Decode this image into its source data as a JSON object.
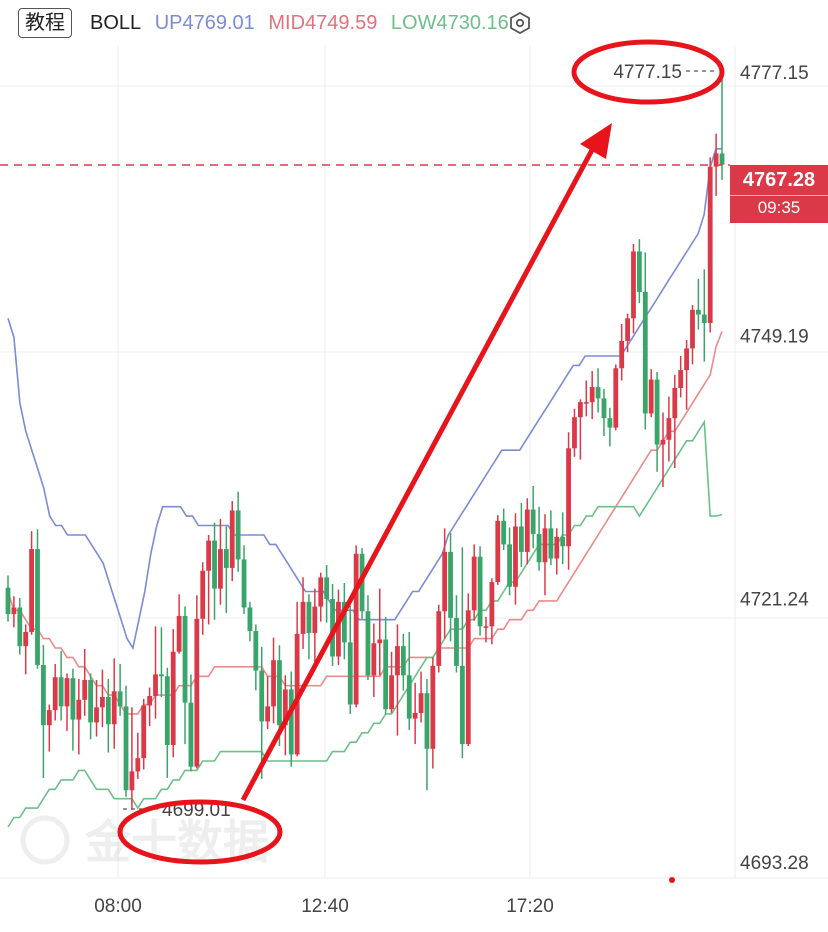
{
  "header": {
    "tag_label": "教程",
    "indicator_name": "BOLL",
    "up_label": "UP4769.01",
    "mid_label": "MID4749.59",
    "low_label": "LOW4730.16",
    "settings_icon": "hexagon-gear-icon"
  },
  "current_price": {
    "value": "4767.28",
    "countdown": "09:35"
  },
  "colors": {
    "up_candle": "#dc3948",
    "down_candle": "#3aa56b",
    "boll_up": "#7b8bd6",
    "boll_mid": "#ec8a8a",
    "boll_low": "#6dbf8a",
    "annotation": "#e8141c"
  },
  "chart_data": {
    "type": "candlestick",
    "title": "",
    "y_axis": {
      "ticks": [
        "4777.15",
        "4749.19",
        "4721.24",
        "4693.28"
      ],
      "range": [
        4692,
        4785
      ]
    },
    "x_axis": {
      "ticks": [
        "08:00",
        "12:40",
        "17:20"
      ]
    },
    "high_marker": "4777.15",
    "low_marker": "4699.01",
    "watermark": "金十数据",
    "candles_ohlc": [
      [
        4722.4,
        4723.7,
        4718.8,
        4719.6
      ],
      [
        4719.6,
        4721.5,
        4718.2,
        4720.3
      ],
      [
        4720.3,
        4721.3,
        4715.3,
        4716.2
      ],
      [
        4716.2,
        4718.5,
        4713.2,
        4717.7
      ],
      [
        4717.7,
        4728.4,
        4717.4,
        4726.5
      ],
      [
        4726.5,
        4728.6,
        4713.8,
        4714.2
      ],
      [
        4714.2,
        4716.3,
        4702.2,
        4707.8
      ],
      [
        4707.8,
        4710.0,
        4705.0,
        4709.4
      ],
      [
        4709.4,
        4714.3,
        4708.3,
        4712.9
      ],
      [
        4712.9,
        4715.7,
        4708.3,
        4709.8
      ],
      [
        4709.8,
        4713.3,
        4707.2,
        4712.8
      ],
      [
        4712.8,
        4713.8,
        4705.1,
        4708.4
      ],
      [
        4708.4,
        4712.7,
        4704.7,
        4710.5
      ],
      [
        4710.5,
        4715.9,
        4708.8,
        4712.6
      ],
      [
        4712.6,
        4713.3,
        4706.3,
        4708.1
      ],
      [
        4708.1,
        4712.6,
        4706.6,
        4709.7
      ],
      [
        4709.7,
        4713.7,
        4707.6,
        4710.8
      ],
      [
        4710.8,
        4712.7,
        4704.9,
        4707.9
      ],
      [
        4707.9,
        4714.9,
        4705.3,
        4711.4
      ],
      [
        4711.4,
        4714.3,
        4708.8,
        4709.8
      ],
      [
        4709.8,
        4712.0,
        4700.2,
        4700.9
      ],
      [
        4700.9,
        4709.7,
        4698.9,
        4702.9
      ],
      [
        4702.9,
        4707.0,
        4702.1,
        4704.3
      ],
      [
        4704.3,
        4710.6,
        4703.1,
        4709.9
      ],
      [
        4709.9,
        4711.8,
        4707.7,
        4710.9
      ],
      [
        4710.9,
        4718.3,
        4708.5,
        4713.2
      ],
      [
        4713.2,
        4718.2,
        4710.8,
        4713.0
      ],
      [
        4713.0,
        4713.9,
        4702.2,
        4705.7
      ],
      [
        4705.7,
        4718.0,
        4704.4,
        4715.6
      ],
      [
        4715.6,
        4721.7,
        4715.4,
        4719.4
      ],
      [
        4719.4,
        4720.4,
        4705.8,
        4710.2
      ],
      [
        4710.2,
        4713.2,
        4702.9,
        4703.4
      ],
      [
        4703.4,
        4721.6,
        4703.2,
        4719.1
      ],
      [
        4719.1,
        4725.1,
        4717.4,
        4724.2
      ],
      [
        4724.2,
        4728.0,
        4718.5,
        4727.4
      ],
      [
        4727.4,
        4729.3,
        4719.0,
        4722.3
      ],
      [
        4722.3,
        4729.7,
        4720.6,
        4726.5
      ],
      [
        4726.5,
        4728.9,
        4719.7,
        4724.5
      ],
      [
        4724.5,
        4731.6,
        4723.1,
        4730.6
      ],
      [
        4730.6,
        4732.6,
        4724.1,
        4725.4
      ],
      [
        4725.4,
        4726.9,
        4719.6,
        4720.3
      ],
      [
        4720.3,
        4720.9,
        4716.7,
        4717.8
      ],
      [
        4717.8,
        4718.5,
        4711.5,
        4713.6
      ],
      [
        4713.6,
        4716.1,
        4702.1,
        4708.2
      ],
      [
        4708.2,
        4713.0,
        4707.4,
        4709.8
      ],
      [
        4709.8,
        4717.1,
        4708.0,
        4714.7
      ],
      [
        4714.7,
        4716.3,
        4705.6,
        4707.8
      ],
      [
        4707.8,
        4713.1,
        4704.6,
        4711.6
      ],
      [
        4711.6,
        4713.5,
        4703.4,
        4704.7
      ],
      [
        4704.7,
        4720.9,
        4704.5,
        4717.5
      ],
      [
        4717.5,
        4723.5,
        4715.9,
        4720.9
      ],
      [
        4720.9,
        4721.7,
        4714.8,
        4717.6
      ],
      [
        4717.6,
        4722.3,
        4713.6,
        4720.4
      ],
      [
        4720.4,
        4724.0,
        4718.8,
        4723.5
      ],
      [
        4723.5,
        4724.8,
        4718.7,
        4721.2
      ],
      [
        4721.2,
        4722.8,
        4714.1,
        4715.1
      ],
      [
        4715.1,
        4722.2,
        4714.2,
        4720.9
      ],
      [
        4720.9,
        4722.9,
        4714.8,
        4716.6
      ],
      [
        4716.6,
        4720.5,
        4709.0,
        4710.0
      ],
      [
        4710.0,
        4726.9,
        4709.7,
        4726.0
      ],
      [
        4726.0,
        4726.6,
        4719.1,
        4719.9
      ],
      [
        4719.9,
        4721.6,
        4712.6,
        4713.1
      ],
      [
        4713.1,
        4718.6,
        4710.8,
        4716.5
      ],
      [
        4716.5,
        4722.3,
        4713.1,
        4716.9
      ],
      [
        4716.9,
        4719.3,
        4709.0,
        4709.5
      ],
      [
        4709.5,
        4715.6,
        4709.1,
        4713.1
      ],
      [
        4713.1,
        4718.5,
        4706.7,
        4716.2
      ],
      [
        4716.2,
        4717.5,
        4711.5,
        4713.1
      ],
      [
        4713.1,
        4717.7,
        4707.3,
        4708.5
      ],
      [
        4708.5,
        4712.3,
        4705.8,
        4709.1
      ],
      [
        4709.1,
        4713.5,
        4708.1,
        4711.2
      ],
      [
        4711.2,
        4712.7,
        4700.9,
        4705.3
      ],
      [
        4705.3,
        4715.0,
        4703.2,
        4714.1
      ],
      [
        4714.1,
        4720.6,
        4713.4,
        4719.9
      ],
      [
        4719.9,
        4728.7,
        4717.0,
        4726.2
      ],
      [
        4726.2,
        4728.2,
        4716.7,
        4719.2
      ],
      [
        4719.2,
        4721.6,
        4713.4,
        4714.1
      ],
      [
        4714.1,
        4726.7,
        4704.3,
        4705.8
      ],
      [
        4705.8,
        4721.8,
        4705.6,
        4720.0
      ],
      [
        4720.0,
        4727.0,
        4718.9,
        4725.7
      ],
      [
        4725.7,
        4726.8,
        4717.3,
        4718.3
      ],
      [
        4718.3,
        4719.3,
        4716.6,
        4718.3
      ],
      [
        4718.3,
        4723.4,
        4716.4,
        4723.0
      ],
      [
        4723.0,
        4730.1,
        4722.7,
        4729.5
      ],
      [
        4729.5,
        4730.8,
        4726.4,
        4727.0
      ],
      [
        4727.0,
        4728.8,
        4721.6,
        4722.5
      ],
      [
        4722.5,
        4730.3,
        4720.6,
        4728.9
      ],
      [
        4728.9,
        4731.4,
        4724.6,
        4726.2
      ],
      [
        4726.2,
        4731.9,
        4724.9,
        4730.7
      ],
      [
        4730.7,
        4733.2,
        4726.6,
        4728.1
      ],
      [
        4728.1,
        4731.0,
        4724.2,
        4725.1
      ],
      [
        4725.1,
        4730.2,
        4721.6,
        4728.7
      ],
      [
        4728.7,
        4730.6,
        4724.8,
        4725.5
      ],
      [
        4725.5,
        4728.7,
        4723.8,
        4727.8
      ],
      [
        4727.8,
        4730.4,
        4724.9,
        4726.8
      ],
      [
        4726.8,
        4738.9,
        4724.3,
        4737.2
      ],
      [
        4737.2,
        4741.4,
        4736.3,
        4740.5
      ],
      [
        4740.5,
        4742.4,
        4736.0,
        4742.1
      ],
      [
        4742.1,
        4744.4,
        4740.6,
        4742.1
      ],
      [
        4742.1,
        4745.4,
        4740.3,
        4743.7
      ],
      [
        4743.7,
        4745.7,
        4741.0,
        4742.5
      ],
      [
        4742.5,
        4743.5,
        4738.5,
        4740.4
      ],
      [
        4740.4,
        4741.5,
        4737.4,
        4739.4
      ],
      [
        4739.4,
        4746.1,
        4739.1,
        4745.7
      ],
      [
        4745.7,
        4750.4,
        4744.4,
        4748.6
      ],
      [
        4748.6,
        4751.5,
        4747.4,
        4751.0
      ],
      [
        4751.0,
        4758.9,
        4749.4,
        4758.1
      ],
      [
        4758.1,
        4759.4,
        4752.6,
        4753.8
      ],
      [
        4753.8,
        4758.0,
        4739.2,
        4740.9
      ],
      [
        4740.9,
        4745.6,
        4740.5,
        4744.5
      ],
      [
        4744.5,
        4745.3,
        4734.7,
        4737.6
      ],
      [
        4737.6,
        4741.0,
        4733.1,
        4738.1
      ],
      [
        4738.1,
        4742.7,
        4735.8,
        4740.4
      ],
      [
        4740.4,
        4745.0,
        4735.1,
        4743.6
      ],
      [
        4743.6,
        4747.0,
        4742.6,
        4745.5
      ],
      [
        4745.5,
        4748.7,
        4741.3,
        4747.8
      ],
      [
        4747.8,
        4752.4,
        4746.1,
        4751.9
      ],
      [
        4751.9,
        4755.2,
        4749.8,
        4751.4
      ],
      [
        4751.4,
        4756.2,
        4746.4,
        4750.5
      ],
      [
        4750.5,
        4768.1,
        4749.5,
        4767.1
      ],
      [
        4767.1,
        4770.6,
        4764.0,
        4768.5
      ],
      [
        4768.5,
        4777.2,
        4765.7,
        4767.3
      ]
    ],
    "boll_up": [
      4751,
      4749,
      4742,
      4739,
      4737,
      4735,
      4733,
      4730,
      4729,
      4729,
      4728,
      4728,
      4728,
      4728,
      4727,
      4726,
      4725,
      4723,
      4721,
      4719,
      4717,
      4716,
      4719,
      4722,
      4726,
      4729,
      4731,
      4731,
      4731,
      4731,
      4730,
      4730,
      4729,
      4729,
      4729,
      4729,
      4729,
      4729,
      4728,
      4728,
      4728,
      4728,
      4728,
      4728,
      4727,
      4727,
      4726,
      4725,
      4724,
      4723,
      4722,
      4722,
      4722,
      4722,
      4721,
      4720,
      4720,
      4720,
      4720,
      4719,
      4719,
      4719,
      4719,
      4719,
      4719,
      4719,
      4720,
      4721,
      4722,
      4722,
      4723,
      4724,
      4725,
      4726,
      4728,
      4729,
      4730,
      4731,
      4732,
      4733,
      4734,
      4735,
      4736,
      4737,
      4737,
      4737,
      4737,
      4738,
      4739,
      4740,
      4741,
      4742,
      4743,
      4744,
      4745,
      4746,
      4746,
      4747,
      4747,
      4747,
      4747,
      4747,
      4747,
      4747,
      4748,
      4749,
      4750,
      4751,
      4752,
      4753,
      4754,
      4755,
      4756,
      4757,
      4758,
      4759,
      4760,
      4762,
      4767,
      4769,
      4769
    ],
    "boll_mid": [
      4722,
      4720,
      4720,
      4719,
      4718,
      4718,
      4717,
      4717,
      4716,
      4716,
      4715,
      4715,
      4714,
      4714,
      4713,
      4712,
      4712,
      4711,
      4711,
      4710,
      4709,
      4709,
      4709,
      4710,
      4710,
      4711,
      4711,
      4711,
      4711,
      4712,
      4712,
      4712,
      4713,
      4713,
      4713,
      4714,
      4714,
      4714,
      4714,
      4714,
      4714,
      4714,
      4714,
      4714,
      4713,
      4713,
      4713,
      4712,
      4712,
      4712,
      4712,
      4712,
      4712,
      4712,
      4713,
      4713,
      4713,
      4713,
      4713,
      4713,
      4713,
      4713,
      4713,
      4713,
      4714,
      4714,
      4714,
      4714,
      4715,
      4715,
      4715,
      4715,
      4715,
      4716,
      4716,
      4716,
      4716,
      4716,
      4716,
      4717,
      4717,
      4717,
      4717,
      4718,
      4718,
      4719,
      4719,
      4719,
      4720,
      4720,
      4721,
      4721,
      4721,
      4721,
      4722,
      4723,
      4724,
      4725,
      4726,
      4727,
      4728,
      4729,
      4730,
      4731,
      4732,
      4733,
      4734,
      4735,
      4736,
      4737,
      4737,
      4738,
      4739,
      4739,
      4740,
      4741,
      4742,
      4743,
      4744,
      4745,
      4748,
      4749.59
    ],
    "boll_low": [
      4697,
      4698,
      4698,
      4699,
      4699,
      4699,
      4700,
      4701,
      4701,
      4702,
      4702,
      4702,
      4703,
      4703,
      4702,
      4701,
      4701,
      4701,
      4700,
      4700,
      4700,
      4700,
      4699,
      4700,
      4700,
      4700,
      4701,
      4701,
      4702,
      4702,
      4703,
      4703,
      4703,
      4704,
      4704,
      4704,
      4705,
      4705,
      4705,
      4705,
      4705,
      4705,
      4705,
      4705,
      4704,
      4704,
      4704,
      4704,
      4704,
      4704,
      4704,
      4704,
      4704,
      4704,
      4704,
      4705,
      4705,
      4705,
      4706,
      4706,
      4707,
      4707,
      4708,
      4708,
      4709,
      4709,
      4710,
      4711,
      4712,
      4713,
      4714,
      4715,
      4715,
      4716,
      4717,
      4718,
      4718,
      4718,
      4719,
      4719,
      4720,
      4720,
      4721,
      4721,
      4722,
      4723,
      4723,
      4724,
      4725,
      4726,
      4727,
      4727,
      4727,
      4727,
      4728,
      4728,
      4729,
      4729,
      4730,
      4730,
      4731,
      4731,
      4731,
      4731,
      4731,
      4731,
      4731,
      4730,
      4731,
      4732,
      4733,
      4734,
      4735,
      4736,
      4737,
      4738,
      4738,
      4739,
      4740,
      4730,
      4730,
      4730.16
    ]
  }
}
